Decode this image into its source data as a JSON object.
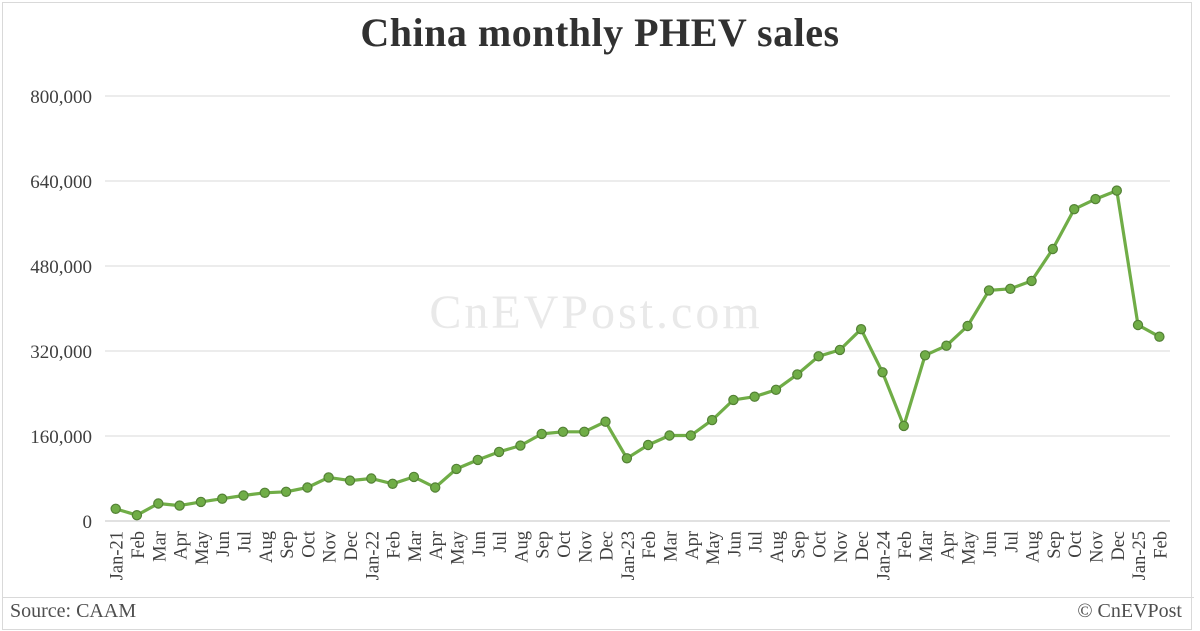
{
  "chart_data": {
    "type": "line",
    "title": "China monthly PHEV sales",
    "watermark": "CnEVPost.com",
    "series_name": "PHEV sales",
    "categories": [
      "Jan-21",
      "Feb",
      "Mar",
      "Apr",
      "May",
      "Jun",
      "Jul",
      "Aug",
      "Sep",
      "Oct",
      "Nov",
      "Dec",
      "Jan-22",
      "Feb",
      "Mar",
      "Apr",
      "May",
      "Jun",
      "Jul",
      "Aug",
      "Sep",
      "Oct",
      "Nov",
      "Dec",
      "Jan-23",
      "Feb",
      "Mar",
      "Apr",
      "May",
      "Jun",
      "Jul",
      "Aug",
      "Sep",
      "Oct",
      "Nov",
      "Dec",
      "Jan-24",
      "Feb",
      "Mar",
      "Apr",
      "May",
      "Jun",
      "Jul",
      "Aug",
      "Sep",
      "Oct",
      "Nov",
      "Dec",
      "Jan-25",
      "Feb"
    ],
    "values": [
      23000,
      11000,
      33000,
      29000,
      36000,
      42000,
      48000,
      53000,
      55000,
      63000,
      82000,
      76000,
      80000,
      70000,
      83000,
      63000,
      98000,
      115000,
      130000,
      142000,
      164000,
      168000,
      168000,
      187000,
      118000,
      143000,
      161000,
      161000,
      190000,
      228000,
      234000,
      247000,
      276000,
      310000,
      322000,
      361000,
      280000,
      179000,
      312000,
      330000,
      367000,
      434000,
      437000,
      452000,
      512000,
      587000,
      606000,
      622000,
      369000,
      347000
    ],
    "ylim": [
      0,
      800000
    ],
    "y_ticks": [
      0,
      160000,
      320000,
      480000,
      640000,
      800000
    ],
    "y_tick_labels": [
      "0",
      "160,000",
      "320,000",
      "480,000",
      "640,000",
      "800,000"
    ],
    "grid": true,
    "legend": "none",
    "line_color": "#70ad47",
    "marker_color": "#70ad47",
    "marker_border_color": "#538135",
    "gridline_color": "#d9d9d9",
    "axis_line_color": "#c3c3c3",
    "axis_text_color": "#3f3f3f",
    "watermark_color": "#e9e9e9"
  },
  "footer": {
    "source": "Source: CAAM",
    "copyright": "© CnEVPost"
  }
}
